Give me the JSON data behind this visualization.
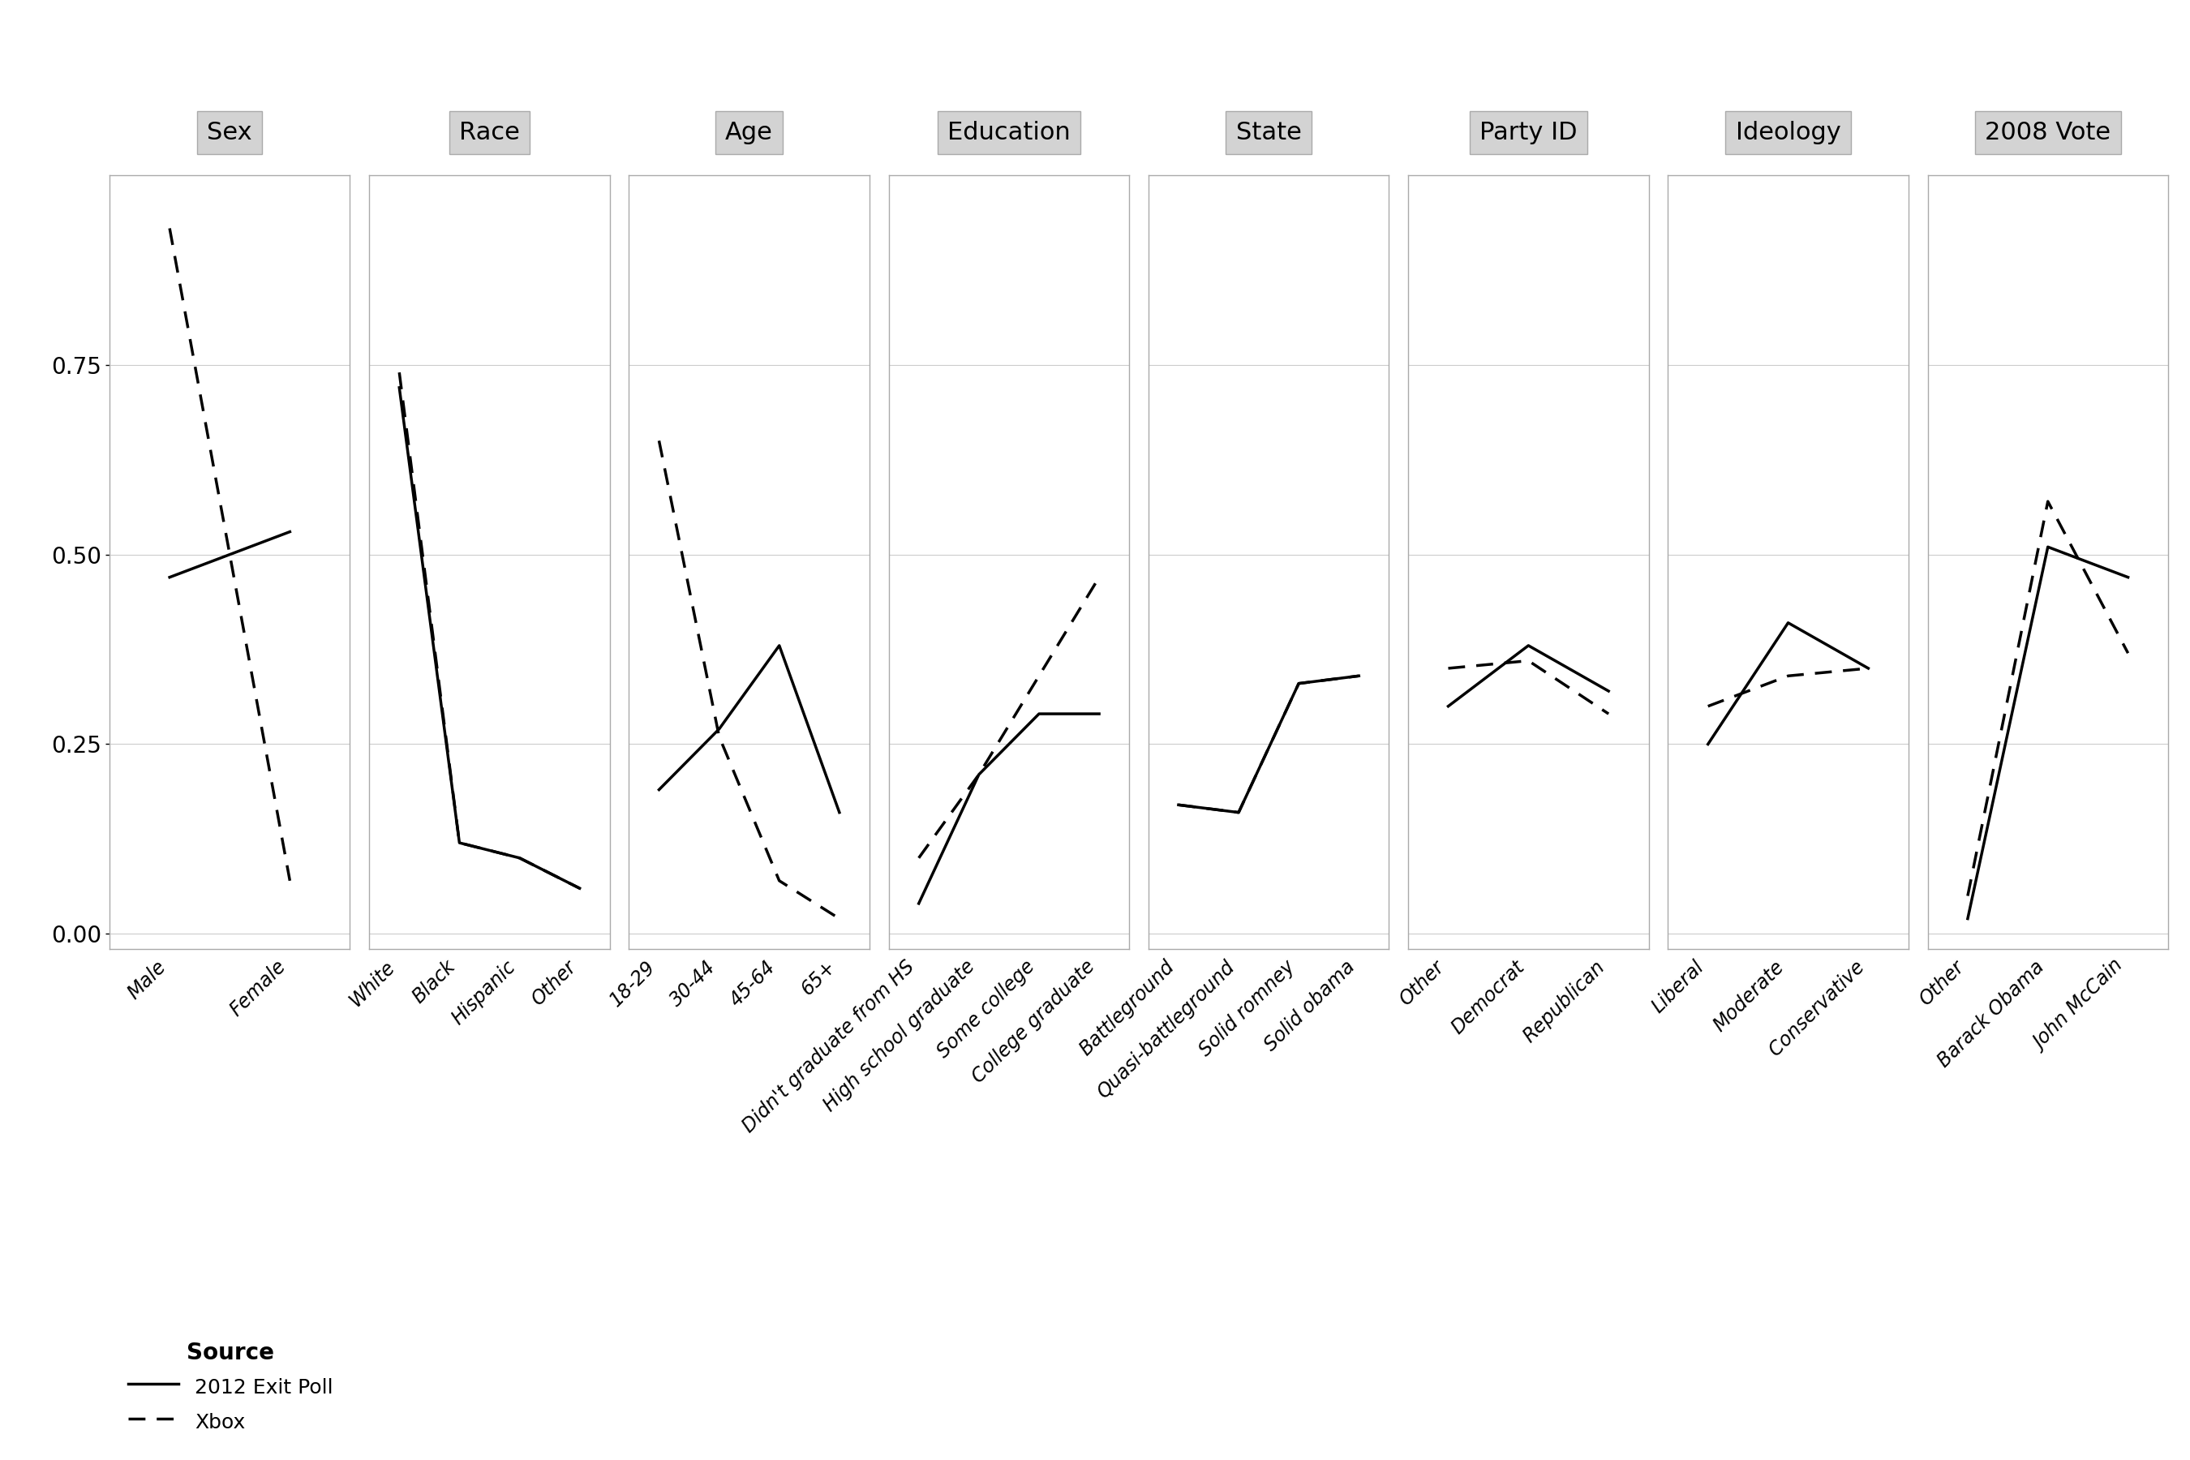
{
  "panels": [
    {
      "title": "Sex",
      "categories": [
        "Male",
        "Female"
      ],
      "exit_poll": [
        0.47,
        0.53
      ],
      "xbox": [
        0.93,
        0.07
      ]
    },
    {
      "title": "Race",
      "categories": [
        "White",
        "Black",
        "Hispanic",
        "Other"
      ],
      "exit_poll": [
        0.72,
        0.12,
        0.1,
        0.06
      ],
      "xbox": [
        0.74,
        0.12,
        0.1,
        0.06
      ]
    },
    {
      "title": "Age",
      "categories": [
        "18-29",
        "30-44",
        "45-64",
        "65+"
      ],
      "exit_poll": [
        0.19,
        0.27,
        0.38,
        0.16
      ],
      "xbox": [
        0.65,
        0.26,
        0.07,
        0.02
      ]
    },
    {
      "title": "Education",
      "categories": [
        "Didn't graduate from HS",
        "High school graduate",
        "Some college",
        "College graduate"
      ],
      "exit_poll": [
        0.04,
        0.21,
        0.29,
        0.29
      ],
      "xbox": [
        0.1,
        0.21,
        0.34,
        0.47
      ]
    },
    {
      "title": "State",
      "categories": [
        "Battleground",
        "Quasi-battleground",
        "Solid romney",
        "Solid obama"
      ],
      "exit_poll": [
        0.17,
        0.16,
        0.33,
        0.34
      ],
      "xbox": [
        0.17,
        0.16,
        0.33,
        0.34
      ]
    },
    {
      "title": "Party ID",
      "categories": [
        "Other",
        "Democrat",
        "Republican"
      ],
      "exit_poll": [
        0.3,
        0.38,
        0.32
      ],
      "xbox": [
        0.35,
        0.36,
        0.29
      ]
    },
    {
      "title": "Ideology",
      "categories": [
        "Liberal",
        "Moderate",
        "Conservative"
      ],
      "exit_poll": [
        0.25,
        0.41,
        0.35
      ],
      "xbox": [
        0.3,
        0.34,
        0.35
      ]
    },
    {
      "title": "2008 Vote",
      "categories": [
        "Other",
        "Barack Obama",
        "John McCain"
      ],
      "exit_poll": [
        0.02,
        0.51,
        0.47
      ],
      "xbox": [
        0.05,
        0.57,
        0.37
      ]
    }
  ],
  "background_color": "#ffffff",
  "panel_header_color": "#d3d3d3",
  "line_color": "#000000",
  "ylabel": "",
  "yticks": [
    0.0,
    0.25,
    0.5,
    0.75
  ],
  "ylim": [
    -0.02,
    1.0
  ],
  "legend_title": "Source",
  "legend_items": [
    "2012 Exit Poll",
    "Xbox"
  ]
}
